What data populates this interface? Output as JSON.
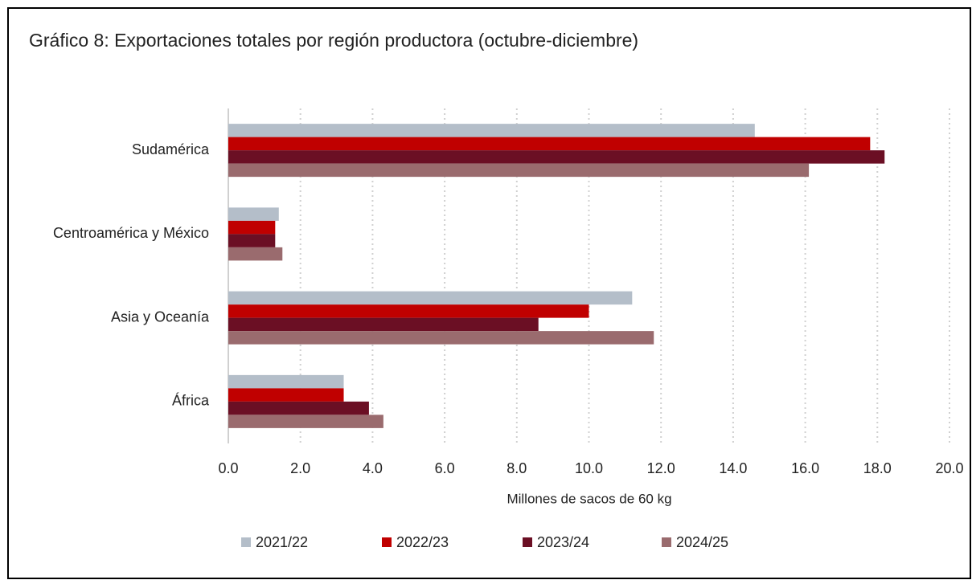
{
  "chart_data": {
    "type": "hbar",
    "title": "Gráfico 8: Exportaciones totales por región productora (octubre-diciembre)",
    "xlabel": "Millones de sacos de 60 kg",
    "categories": [
      "Sudamérica",
      "Centroamérica y México",
      "Asia y Oceanía",
      "África"
    ],
    "series": [
      {
        "name": "2021/22",
        "color": "#b4bec9",
        "values": [
          14.6,
          1.4,
          11.2,
          3.2
        ]
      },
      {
        "name": "2022/23",
        "color": "#c00000",
        "values": [
          17.8,
          1.3,
          10.0,
          3.2
        ]
      },
      {
        "name": "2023/24",
        "color": "#6b0f24",
        "values": [
          18.2,
          1.3,
          8.6,
          3.9
        ]
      },
      {
        "name": "2024/25",
        "color": "#9a6b6e",
        "values": [
          16.1,
          1.5,
          11.8,
          4.3
        ]
      }
    ],
    "xlim": [
      0,
      20
    ],
    "xticks": [
      {
        "value": 0,
        "label": "0.0"
      },
      {
        "value": 2,
        "label": "2.0"
      },
      {
        "value": 4,
        "label": "4.0"
      },
      {
        "value": 6,
        "label": "6.0"
      },
      {
        "value": 8,
        "label": "8.0"
      },
      {
        "value": 10,
        "label": "10.0"
      },
      {
        "value": 12,
        "label": "12.0"
      },
      {
        "value": 14,
        "label": "14.0"
      },
      {
        "value": 16,
        "label": "16.0"
      },
      {
        "value": 18,
        "label": "18.0"
      },
      {
        "value": 20,
        "label": "20.0"
      }
    ],
    "grid": true,
    "legend": "bottom"
  }
}
